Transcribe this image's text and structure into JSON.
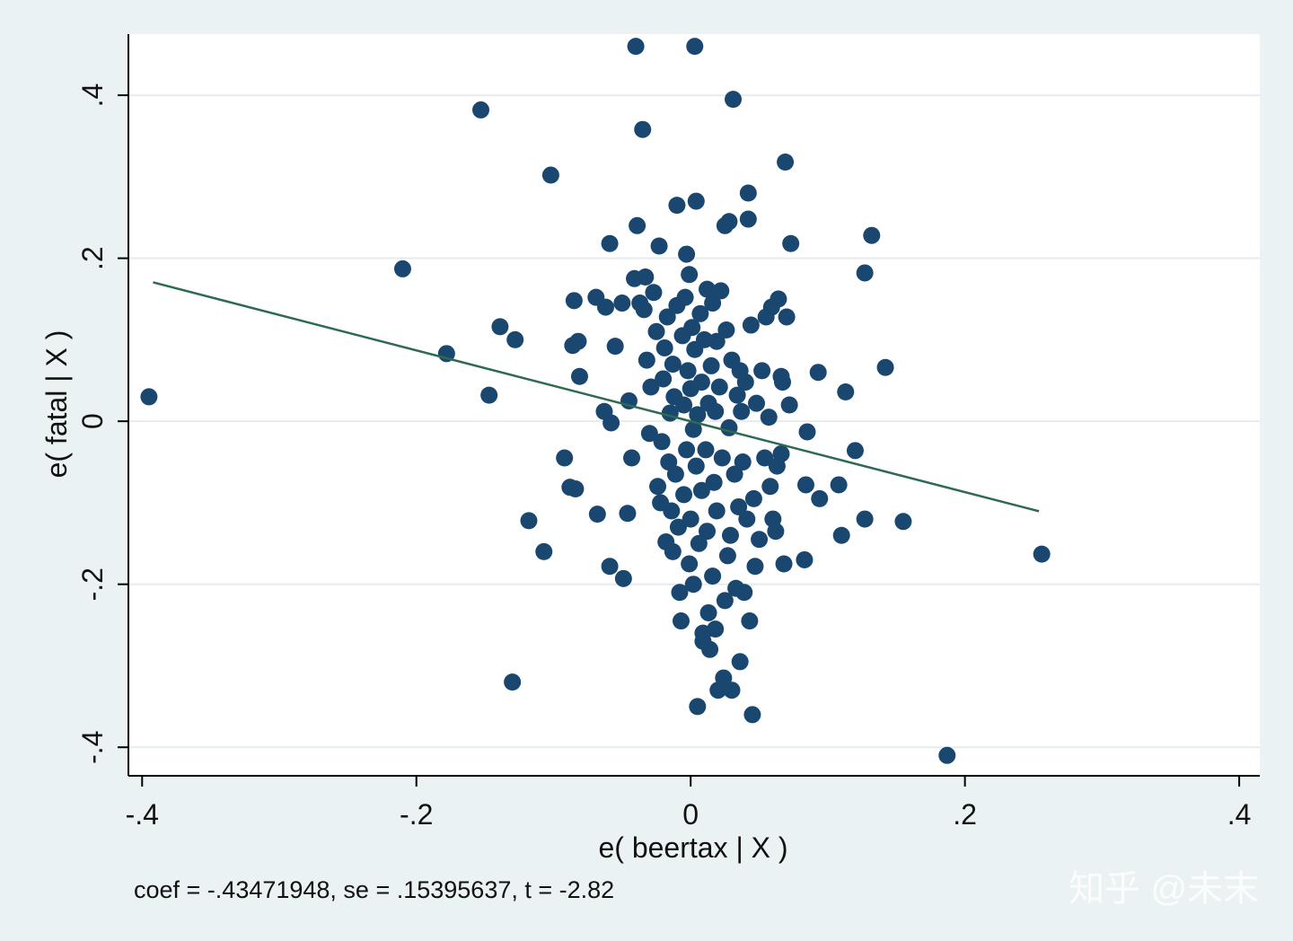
{
  "colors": {
    "outer_background": "#eaf2f3",
    "plot_background": "#ffffff",
    "gridline": "#e4ecee",
    "marker": "#1a476f",
    "fit_line": "#2d6a4f",
    "axis": "#000000"
  },
  "chart_data": {
    "type": "scatter",
    "title": "",
    "xlabel": "e( beertax | X )",
    "ylabel": "e( fatal | X )",
    "xlim": [
      -0.41,
      0.415
    ],
    "ylim": [
      -0.435,
      0.475
    ],
    "x_ticks": [
      -0.4,
      -0.2,
      0,
      0.2,
      0.4
    ],
    "x_tick_labels": [
      "-.4",
      "-.2",
      "0",
      ".2",
      ".4"
    ],
    "y_ticks": [
      -0.4,
      -0.2,
      0,
      0.2,
      0.4
    ],
    "y_tick_labels": [
      "-.4",
      "-.2",
      "0",
      ".2",
      ".4"
    ],
    "grid": "horizontal",
    "note": "coef = -.43471948, se = .15395637, t = -2.82",
    "fit_line": {
      "slope": -0.43471948,
      "intercept": 0,
      "x_range": [
        -0.392,
        0.254
      ]
    },
    "points": [
      [
        -0.395,
        0.03
      ],
      [
        -0.21,
        0.187
      ],
      [
        -0.178,
        0.083
      ],
      [
        -0.153,
        0.382
      ],
      [
        -0.147,
        0.032
      ],
      [
        -0.139,
        0.116
      ],
      [
        -0.128,
        0.1
      ],
      [
        -0.13,
        -0.32
      ],
      [
        -0.118,
        -0.122
      ],
      [
        -0.107,
        -0.16
      ],
      [
        -0.102,
        0.302
      ],
      [
        -0.092,
        -0.045
      ],
      [
        -0.088,
        -0.081
      ],
      [
        -0.084,
        -0.083
      ],
      [
        -0.085,
        0.148
      ],
      [
        -0.086,
        0.093
      ],
      [
        -0.082,
        0.098
      ],
      [
        -0.081,
        0.055
      ],
      [
        -0.068,
        -0.114
      ],
      [
        -0.069,
        0.152
      ],
      [
        -0.063,
        0.012
      ],
      [
        -0.062,
        0.14
      ],
      [
        -0.059,
        0.218
      ],
      [
        -0.058,
        -0.002
      ],
      [
        -0.059,
        -0.178
      ],
      [
        -0.055,
        0.092
      ],
      [
        -0.05,
        0.145
      ],
      [
        -0.049,
        -0.193
      ],
      [
        -0.046,
        -0.113
      ],
      [
        -0.045,
        0.025
      ],
      [
        -0.043,
        -0.045
      ],
      [
        -0.041,
        0.175
      ],
      [
        -0.04,
        0.46
      ],
      [
        -0.039,
        0.24
      ],
      [
        -0.037,
        0.145
      ],
      [
        -0.035,
        0.358
      ],
      [
        -0.034,
        0.137
      ],
      [
        -0.033,
        0.177
      ],
      [
        -0.032,
        0.075
      ],
      [
        -0.03,
        -0.015
      ],
      [
        -0.029,
        0.042
      ],
      [
        -0.027,
        0.158
      ],
      [
        -0.025,
        0.11
      ],
      [
        -0.024,
        -0.08
      ],
      [
        -0.023,
        0.215
      ],
      [
        -0.022,
        -0.1
      ],
      [
        -0.021,
        -0.025
      ],
      [
        -0.02,
        0.052
      ],
      [
        -0.019,
        0.09
      ],
      [
        -0.018,
        -0.148
      ],
      [
        -0.017,
        0.128
      ],
      [
        -0.016,
        -0.05
      ],
      [
        -0.015,
        0.01
      ],
      [
        -0.014,
        -0.11
      ],
      [
        -0.013,
        0.07
      ],
      [
        -0.013,
        -0.16
      ],
      [
        -0.012,
        0.03
      ],
      [
        -0.011,
        -0.065
      ],
      [
        -0.01,
        0.142
      ],
      [
        -0.01,
        0.265
      ],
      [
        -0.009,
        -0.13
      ],
      [
        -0.008,
        -0.21
      ],
      [
        -0.007,
        -0.245
      ],
      [
        -0.006,
        0.105
      ],
      [
        -0.005,
        0.02
      ],
      [
        -0.005,
        -0.09
      ],
      [
        -0.004,
        0.152
      ],
      [
        -0.003,
        -0.035
      ],
      [
        -0.003,
        0.205
      ],
      [
        -0.002,
        0.062
      ],
      [
        -0.001,
        0.18
      ],
      [
        -0.001,
        -0.175
      ],
      [
        0,
        0.04
      ],
      [
        0,
        -0.12
      ],
      [
        0.001,
        0.115
      ],
      [
        0.002,
        -0.01
      ],
      [
        0.002,
        -0.2
      ],
      [
        0.003,
        0.088
      ],
      [
        0.003,
        0.46
      ],
      [
        0.004,
        -0.055
      ],
      [
        0.004,
        0.27
      ],
      [
        0.005,
        -0.35
      ],
      [
        0.005,
        0.008
      ],
      [
        0.006,
        -0.15
      ],
      [
        0.007,
        0.132
      ],
      [
        0.008,
        -0.085
      ],
      [
        0.008,
        0.048
      ],
      [
        0.009,
        -0.27
      ],
      [
        0.009,
        -0.26
      ],
      [
        0.01,
        0.1
      ],
      [
        0.011,
        -0.035
      ],
      [
        0.012,
        0.162
      ],
      [
        0.012,
        -0.135
      ],
      [
        0.013,
        0.022
      ],
      [
        0.013,
        -0.235
      ],
      [
        0.014,
        -0.28
      ],
      [
        0.015,
        0.068
      ],
      [
        0.016,
        -0.19
      ],
      [
        0.016,
        0.145
      ],
      [
        0.017,
        -0.075
      ],
      [
        0.018,
        0.012
      ],
      [
        0.018,
        -0.255
      ],
      [
        0.019,
        0.098
      ],
      [
        0.019,
        -0.11
      ],
      [
        0.02,
        -0.33
      ],
      [
        0.021,
        0.042
      ],
      [
        0.022,
        0.16
      ],
      [
        0.023,
        -0.045
      ],
      [
        0.024,
        -0.315
      ],
      [
        0.025,
        0.24
      ],
      [
        0.025,
        -0.22
      ],
      [
        0.026,
        0.112
      ],
      [
        0.027,
        -0.165
      ],
      [
        0.028,
        0.245
      ],
      [
        0.028,
        -0.008
      ],
      [
        0.029,
        -0.14
      ],
      [
        0.03,
        0.075
      ],
      [
        0.03,
        -0.33
      ],
      [
        0.031,
        0.395
      ],
      [
        0.032,
        -0.065
      ],
      [
        0.033,
        -0.205
      ],
      [
        0.034,
        0.032
      ],
      [
        0.035,
        -0.105
      ],
      [
        0.036,
        0.062
      ],
      [
        0.036,
        -0.295
      ],
      [
        0.037,
        0.012
      ],
      [
        0.038,
        -0.05
      ],
      [
        0.039,
        -0.21
      ],
      [
        0.04,
        0.048
      ],
      [
        0.041,
        -0.12
      ],
      [
        0.042,
        0.248
      ],
      [
        0.042,
        0.28
      ],
      [
        0.043,
        -0.245
      ],
      [
        0.044,
        0.118
      ],
      [
        0.045,
        -0.36
      ],
      [
        0.046,
        -0.095
      ],
      [
        0.047,
        -0.178
      ],
      [
        0.048,
        0.022
      ],
      [
        0.05,
        -0.145
      ],
      [
        0.052,
        0.062
      ],
      [
        0.054,
        -0.045
      ],
      [
        0.055,
        0.128
      ],
      [
        0.057,
        0.005
      ],
      [
        0.058,
        -0.08
      ],
      [
        0.059,
        0.14
      ],
      [
        0.06,
        -0.12
      ],
      [
        0.062,
        -0.135
      ],
      [
        0.063,
        -0.055
      ],
      [
        0.064,
        0.15
      ],
      [
        0.066,
        -0.04
      ],
      [
        0.066,
        0.055
      ],
      [
        0.067,
        0.048
      ],
      [
        0.068,
        -0.175
      ],
      [
        0.069,
        0.318
      ],
      [
        0.07,
        0.128
      ],
      [
        0.072,
        0.02
      ],
      [
        0.073,
        0.218
      ],
      [
        0.083,
        -0.17
      ],
      [
        0.084,
        -0.078
      ],
      [
        0.085,
        -0.013
      ],
      [
        0.093,
        0.06
      ],
      [
        0.094,
        -0.095
      ],
      [
        0.108,
        -0.078
      ],
      [
        0.11,
        -0.14
      ],
      [
        0.113,
        0.036
      ],
      [
        0.12,
        -0.036
      ],
      [
        0.127,
        -0.12
      ],
      [
        0.127,
        0.182
      ],
      [
        0.132,
        0.228
      ],
      [
        0.142,
        0.066
      ],
      [
        0.155,
        -0.123
      ],
      [
        0.187,
        -0.41
      ],
      [
        0.256,
        -0.163
      ]
    ]
  },
  "watermark": "知乎 @未末"
}
